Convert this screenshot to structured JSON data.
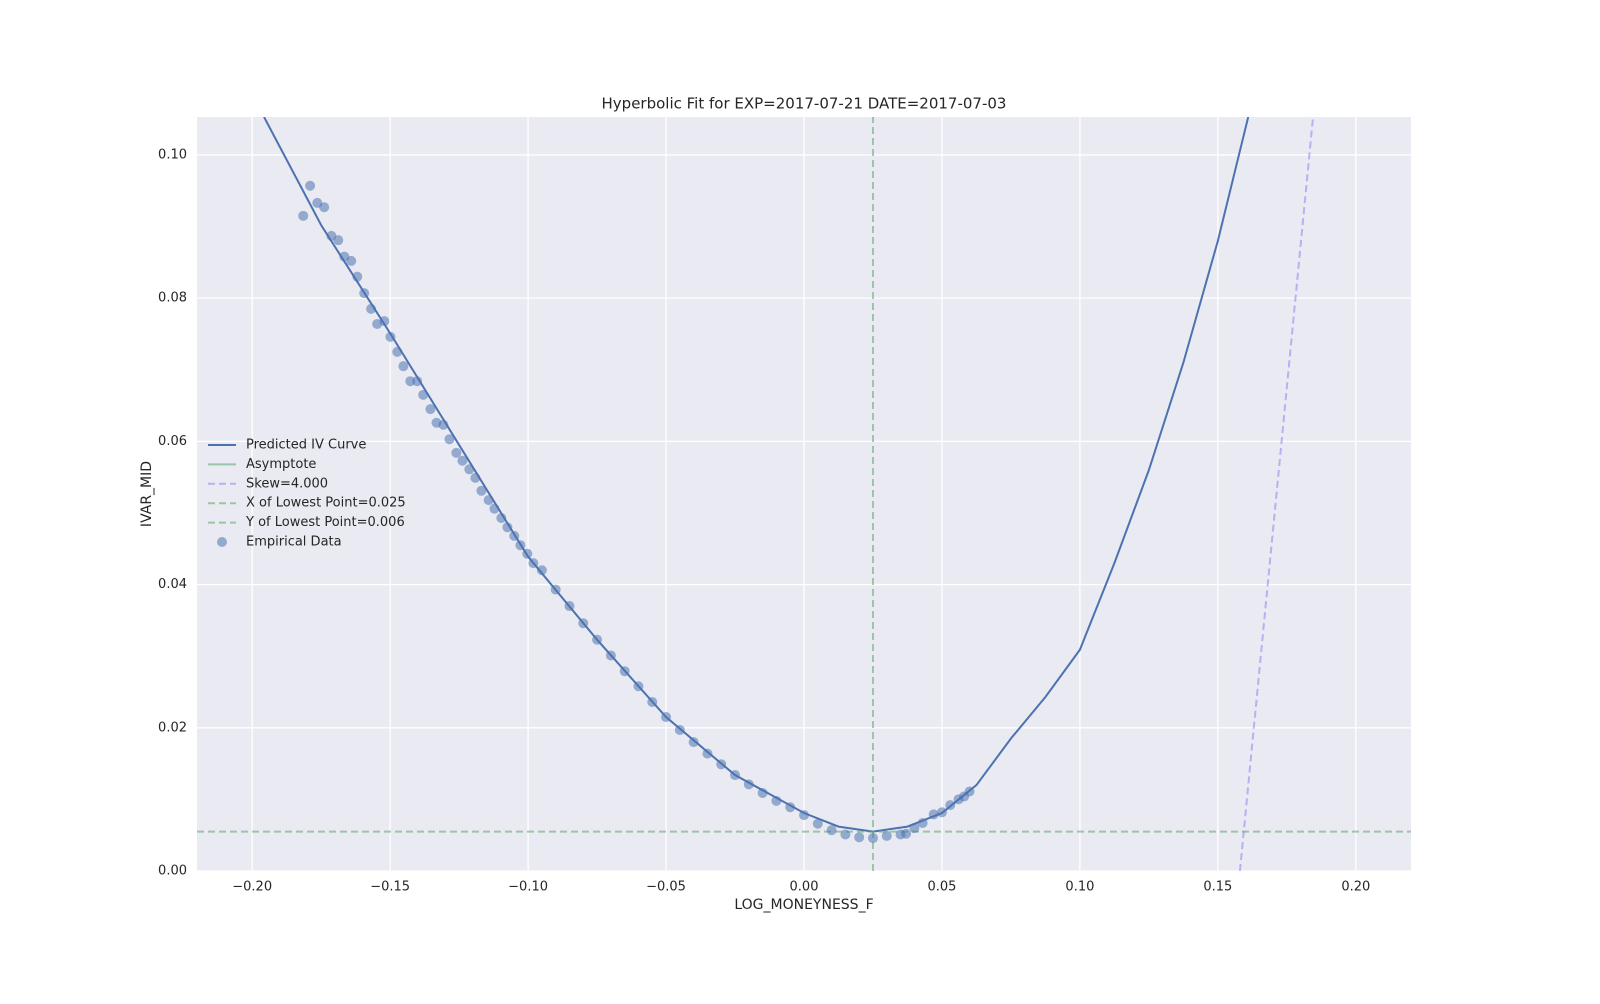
{
  "chart_data": {
    "type": "line",
    "title": "Hyperbolic Fit for EXP=2017-07-21 DATE=2017-07-03",
    "xlabel": "LOG_MONEYNESS_F",
    "ylabel": "IVAR_MID",
    "xlim": [
      -0.22,
      0.22
    ],
    "ylim": [
      0,
      0.1053
    ],
    "xticks": [
      {
        "value": -0.2,
        "label": "−0.20"
      },
      {
        "value": -0.15,
        "label": "−0.15"
      },
      {
        "value": -0.1,
        "label": "−0.10"
      },
      {
        "value": -0.05,
        "label": "−0.05"
      },
      {
        "value": 0,
        "label": "0.00"
      },
      {
        "value": 0.05,
        "label": "0.05"
      },
      {
        "value": 0.1,
        "label": "0.10"
      },
      {
        "value": 0.15,
        "label": "0.15"
      },
      {
        "value": 0.2,
        "label": "0.20"
      }
    ],
    "yticks": [
      {
        "value": 0,
        "label": "0.00"
      },
      {
        "value": 0.02,
        "label": "0.02"
      },
      {
        "value": 0.04,
        "label": "0.04"
      },
      {
        "value": 0.06,
        "label": "0.06"
      },
      {
        "value": 0.08,
        "label": "0.08"
      },
      {
        "value": 0.1,
        "label": "0.10"
      }
    ],
    "grid": true,
    "legend": "center left",
    "series": [
      {
        "name": "Predicted IV Curve",
        "color": "#4c72b0",
        "style": "solid",
        "x": [
          -0.1957,
          -0.175,
          -0.15,
          -0.125,
          -0.1,
          -0.075,
          -0.05,
          -0.025,
          0,
          0.0125,
          0.025,
          0.0375,
          0.05,
          0.0625,
          0.075,
          0.0875,
          0.1,
          0.1125,
          0.125,
          0.1375,
          0.15,
          0.161
        ],
        "y": [
          0.1053,
          0.0902,
          0.0751,
          0.0595,
          0.0439,
          0.0323,
          0.0215,
          0.0134,
          0.0081,
          0.0062,
          0.0055,
          0.0062,
          0.0081,
          0.012,
          0.0185,
          0.0243,
          0.0309,
          0.043,
          0.056,
          0.071,
          0.088,
          0.1053
        ]
      },
      {
        "name": "Asymptote",
        "color": "#55a868",
        "style": "solid",
        "x": [],
        "y": []
      },
      {
        "name": "Skew=4.000",
        "color": "#8c7ff0",
        "style": "dashed",
        "x": [
          0.158,
          0.1845
        ],
        "y": [
          0,
          0.1053
        ]
      },
      {
        "name": "X of Lowest Point=0.025",
        "color": "#55a868",
        "style": "dashed",
        "x": [
          0.025,
          0.025
        ],
        "y": [
          0,
          0.1053
        ]
      },
      {
        "name": "Y of Lowest Point=0.006",
        "color": "#55a868",
        "style": "dashed",
        "x": [
          -0.22,
          0.22
        ],
        "y": [
          0.0055,
          0.0055
        ]
      },
      {
        "name": "Empirical Data",
        "color": "#4c72b0",
        "style": "scatter",
        "x": [
          -0.1815,
          -0.179,
          -0.1764,
          -0.1739,
          -0.1713,
          -0.1688,
          -0.1666,
          -0.1641,
          -0.1619,
          -0.1594,
          -0.1569,
          -0.1547,
          -0.1521,
          -0.1499,
          -0.1474,
          -0.1452,
          -0.1427,
          -0.1402,
          -0.138,
          -0.1354,
          -0.1332,
          -0.1307,
          -0.1285,
          -0.126,
          -0.1238,
          -0.1213,
          -0.1191,
          -0.1169,
          -0.1143,
          -0.1122,
          -0.1097,
          -0.1075,
          -0.105,
          -0.1028,
          -0.1003,
          -0.0981,
          -0.095,
          -0.09,
          -0.085,
          -0.08,
          -0.075,
          -0.07,
          -0.065,
          -0.06,
          -0.055,
          -0.05,
          -0.045,
          -0.04,
          -0.035,
          -0.03,
          -0.025,
          -0.02,
          -0.015,
          -0.01,
          -0.005,
          0,
          0.005,
          0.01,
          0.015,
          0.02,
          0.025,
          0.03,
          0.035,
          0.037,
          0.04,
          0.043,
          0.047,
          0.05,
          0.053,
          0.056,
          0.058,
          0.06
        ],
        "y": [
          0.0915,
          0.0957,
          0.0933,
          0.0927,
          0.0887,
          0.0881,
          0.0858,
          0.0852,
          0.083,
          0.0807,
          0.0785,
          0.0764,
          0.0768,
          0.0746,
          0.0725,
          0.0705,
          0.0684,
          0.0684,
          0.0665,
          0.0645,
          0.0626,
          0.0623,
          0.0603,
          0.0584,
          0.0573,
          0.0561,
          0.0549,
          0.0531,
          0.0518,
          0.0506,
          0.0493,
          0.048,
          0.0468,
          0.0455,
          0.0443,
          0.043,
          0.042,
          0.0393,
          0.037,
          0.0346,
          0.0323,
          0.0301,
          0.0279,
          0.0258,
          0.0236,
          0.0215,
          0.0197,
          0.018,
          0.0164,
          0.0149,
          0.0134,
          0.0121,
          0.0109,
          0.0098,
          0.0089,
          0.0078,
          0.0066,
          0.0057,
          0.0051,
          0.0047,
          0.0046,
          0.0049,
          0.0051,
          0.0052,
          0.006,
          0.0067,
          0.0079,
          0.0082,
          0.0092,
          0.01,
          0.0104,
          0.0111
        ]
      }
    ]
  }
}
